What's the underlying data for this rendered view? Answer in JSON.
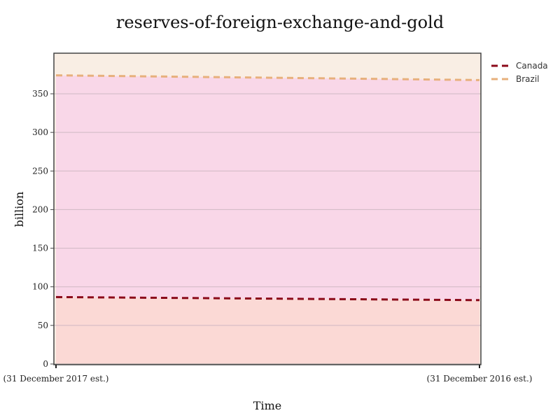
{
  "chart_data": {
    "type": "area",
    "title": "reserves-of-foreign-exchange-and-gold",
    "xlabel": "Time",
    "ylabel": "billion",
    "x": [
      "(31 December 2017 est.)",
      "(31 December 2016 est.)"
    ],
    "ylim": [
      0,
      400
    ],
    "yticks": [
      0,
      50,
      100,
      150,
      200,
      250,
      300,
      350
    ],
    "grid": true,
    "legend_position": "top-right",
    "series": [
      {
        "name": "Canada",
        "values": [
          86.7,
          82.7
        ],
        "line_color": "#8b0a1a",
        "fill_color": "#fbd9d5"
      },
      {
        "name": "Brazil",
        "values": [
          373.9,
          367.8
        ],
        "line_color": "#e7b07c",
        "fill_color": "#f9d7e8"
      }
    ],
    "colors": {
      "plot_background": "#f9eee4",
      "grid": "#cfb8c3"
    }
  }
}
